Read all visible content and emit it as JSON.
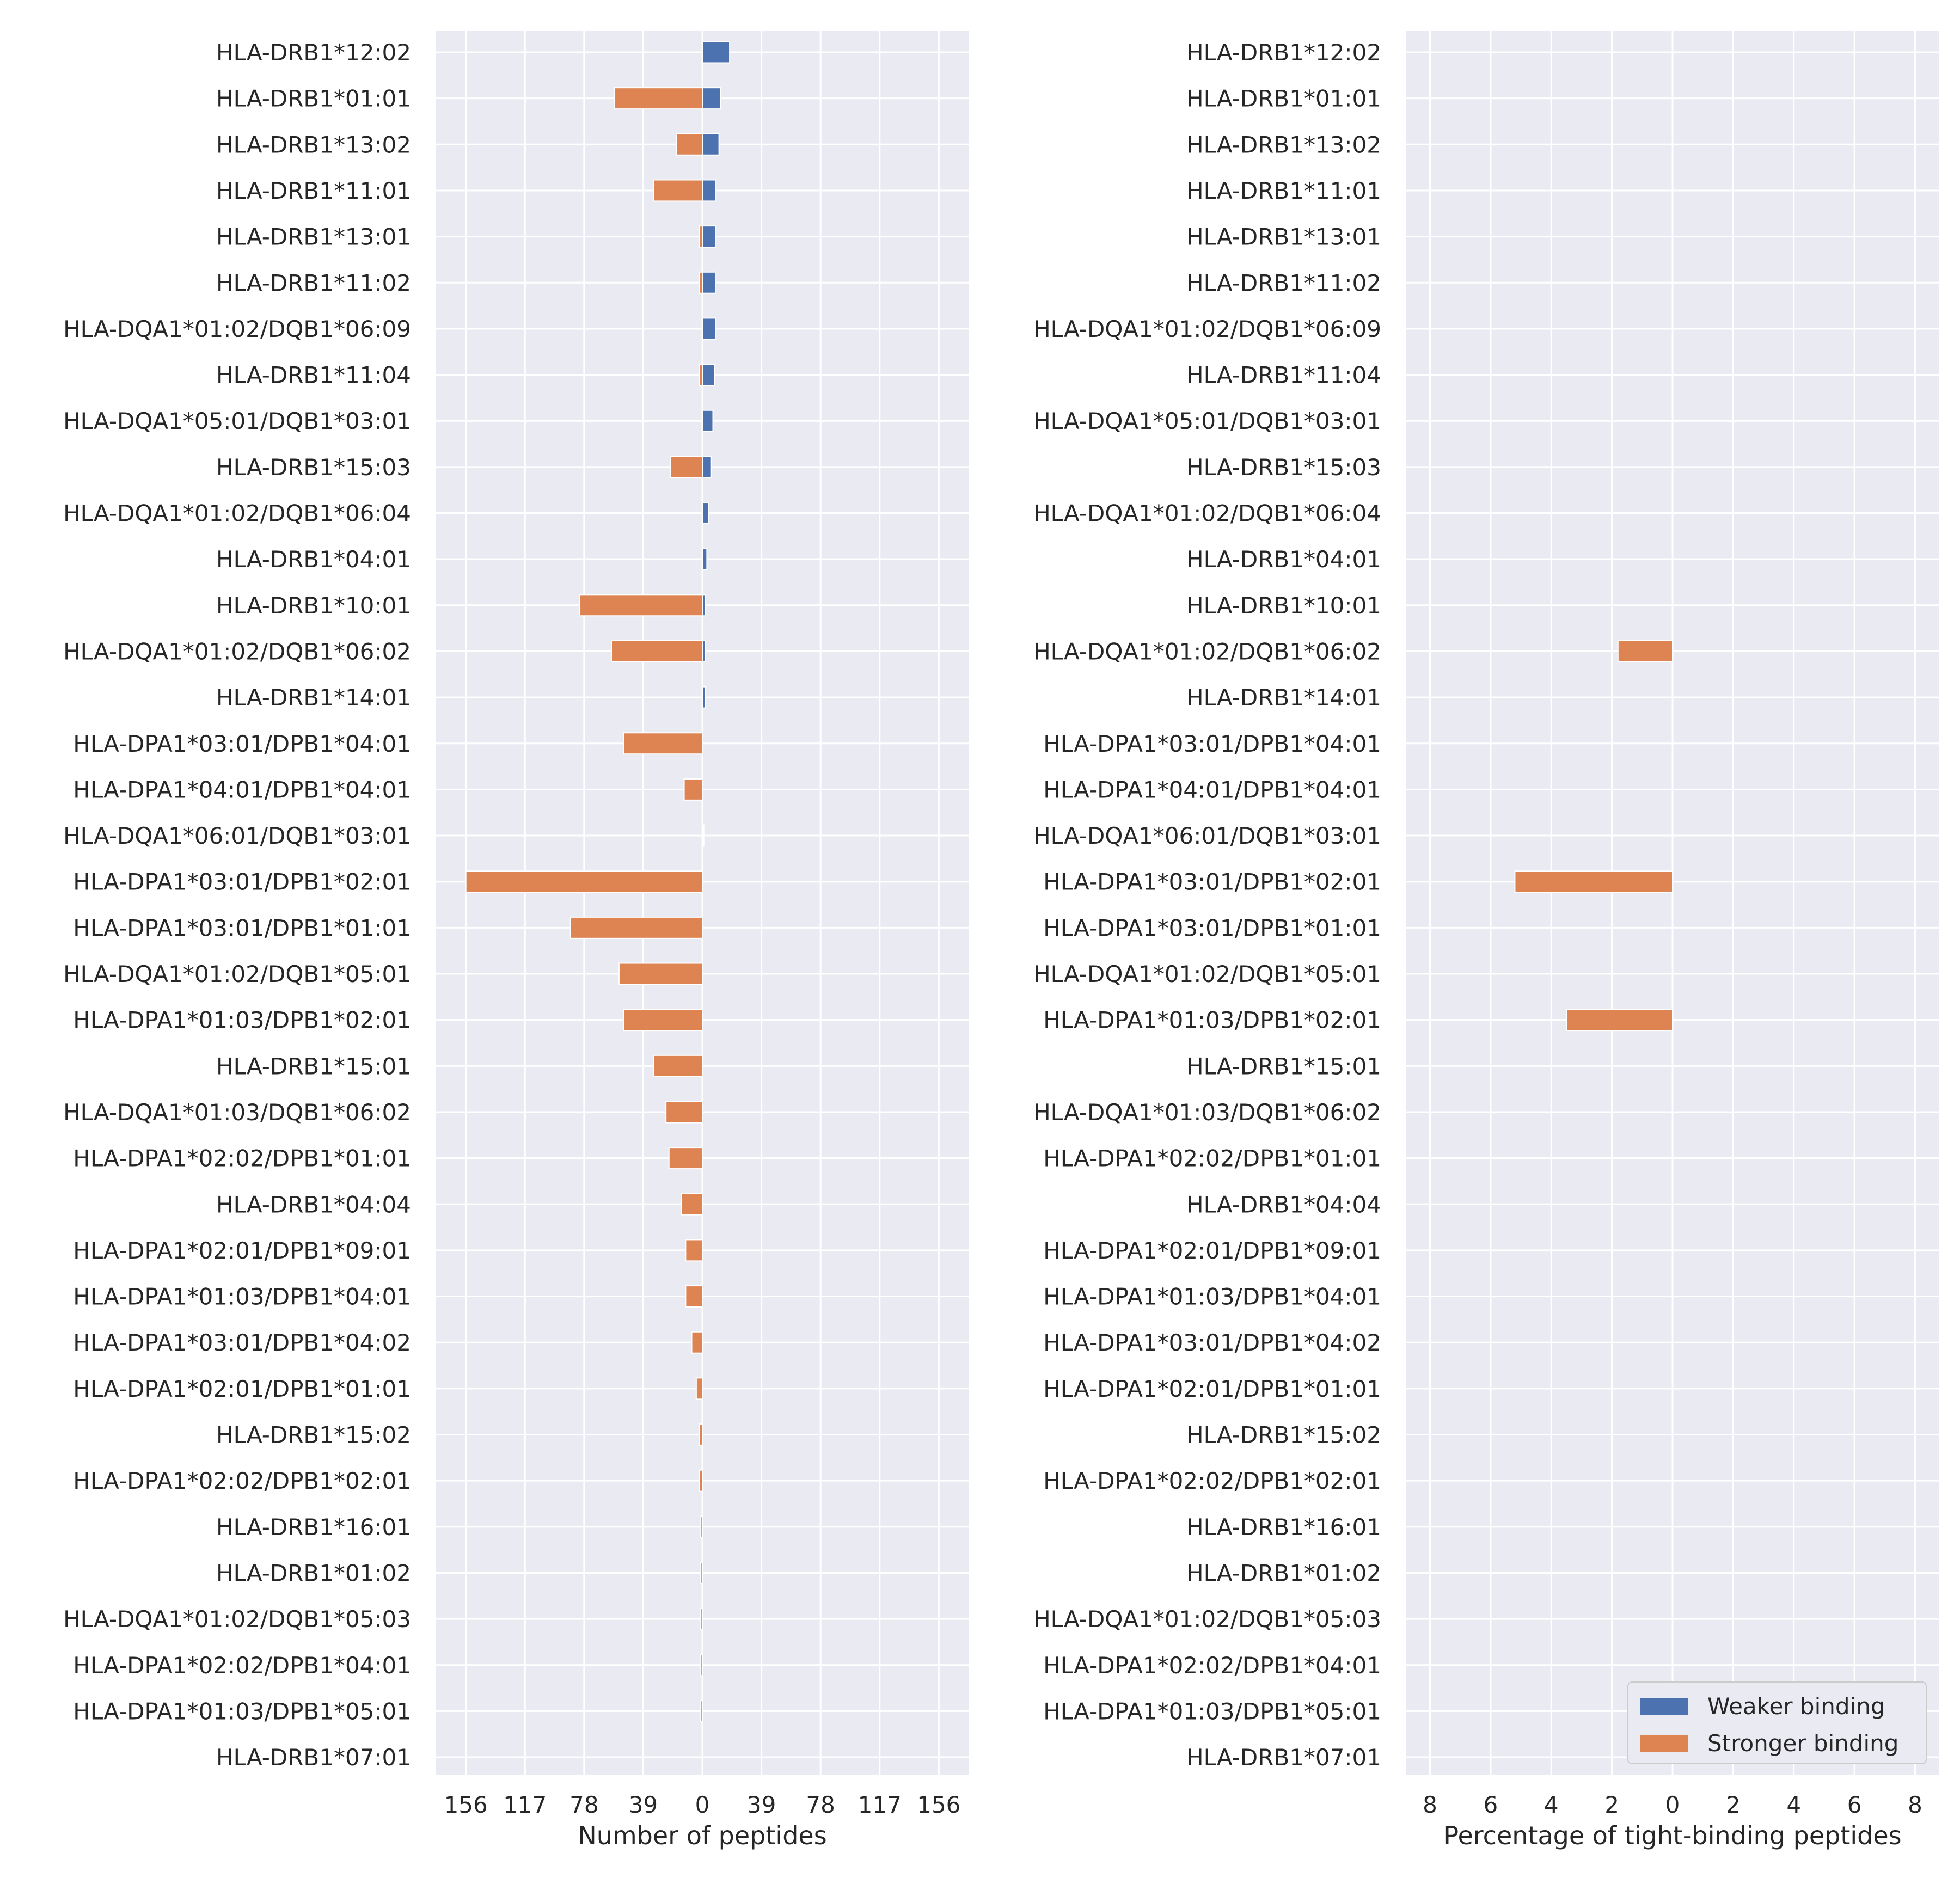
{
  "colors": {
    "weaker": "#4c72b0",
    "stronger": "#dd8452",
    "panel_bg": "#eaeaf2",
    "grid": "#ffffff",
    "text": "#262626"
  },
  "legend": {
    "weaker_label": "Weaker binding",
    "stronger_label": "Stronger binding",
    "placement": "lower-right"
  },
  "chart_data": [
    {
      "type": "bar",
      "orientation": "horizontal",
      "xlabel": "Number of peptides",
      "xlim": [
        -176,
        176
      ],
      "xticks": [
        -156,
        -117,
        -78,
        -39,
        0,
        39,
        78,
        117,
        156
      ],
      "xtick_labels": [
        "156",
        "117",
        "78",
        "39",
        "0",
        "39",
        "78",
        "117",
        "156"
      ],
      "grid": true,
      "categories": [
        "HLA-DRB1*12:02",
        "HLA-DRB1*01:01",
        "HLA-DRB1*13:02",
        "HLA-DRB1*11:01",
        "HLA-DRB1*13:01",
        "HLA-DRB1*11:02",
        "HLA-DQA1*01:02/DQB1*06:09",
        "HLA-DRB1*11:04",
        "HLA-DQA1*05:01/DQB1*03:01",
        "HLA-DRB1*15:03",
        "HLA-DQA1*01:02/DQB1*06:04",
        "HLA-DRB1*04:01",
        "HLA-DRB1*10:01",
        "HLA-DQA1*01:02/DQB1*06:02",
        "HLA-DRB1*14:01",
        "HLA-DPA1*03:01/DPB1*04:01",
        "HLA-DPA1*04:01/DPB1*04:01",
        "HLA-DQA1*06:01/DQB1*03:01",
        "HLA-DPA1*03:01/DPB1*02:01",
        "HLA-DPA1*03:01/DPB1*01:01",
        "HLA-DQA1*01:02/DQB1*05:01",
        "HLA-DPA1*01:03/DPB1*02:01",
        "HLA-DRB1*15:01",
        "HLA-DQA1*01:03/DQB1*06:02",
        "HLA-DPA1*02:02/DPB1*01:01",
        "HLA-DRB1*04:04",
        "HLA-DPA1*02:01/DPB1*09:01",
        "HLA-DPA1*01:03/DPB1*04:01",
        "HLA-DPA1*03:01/DPB1*04:02",
        "HLA-DPA1*02:01/DPB1*01:01",
        "HLA-DRB1*15:02",
        "HLA-DPA1*02:02/DPB1*02:01",
        "HLA-DRB1*16:01",
        "HLA-DRB1*01:02",
        "HLA-DQA1*01:02/DQB1*05:03",
        "HLA-DPA1*02:02/DPB1*04:01",
        "HLA-DPA1*01:03/DPB1*05:01",
        "HLA-DRB1*07:01"
      ],
      "series": [
        {
          "name": "Weaker binding",
          "direction": "right",
          "values": [
            18,
            12,
            11,
            9,
            9,
            9,
            9,
            8,
            7,
            6,
            4,
            3,
            2,
            2,
            2,
            0,
            0,
            1,
            0,
            0,
            0,
            0,
            0,
            0,
            0,
            0,
            0,
            0,
            0,
            0,
            0,
            0,
            0,
            0,
            0,
            0,
            0,
            0
          ]
        },
        {
          "name": "Stronger binding",
          "direction": "left",
          "values": [
            0,
            58,
            17,
            32,
            2,
            2,
            0,
            2,
            0,
            21,
            0,
            0,
            81,
            60,
            0,
            52,
            12,
            0,
            156,
            87,
            55,
            52,
            32,
            24,
            22,
            14,
            11,
            11,
            7,
            4,
            2,
            2,
            1,
            1,
            1,
            1,
            1,
            0
          ]
        }
      ]
    },
    {
      "type": "bar",
      "orientation": "horizontal",
      "xlabel": "Percentage of tight-binding peptides",
      "xlim": [
        -8.8,
        8.8
      ],
      "xticks": [
        -8,
        -6,
        -4,
        -2,
        0,
        2,
        4,
        6,
        8
      ],
      "xtick_labels": [
        "8",
        "6",
        "4",
        "2",
        "0",
        "2",
        "4",
        "6",
        "8"
      ],
      "grid": true,
      "categories": [
        "HLA-DRB1*12:02",
        "HLA-DRB1*01:01",
        "HLA-DRB1*13:02",
        "HLA-DRB1*11:01",
        "HLA-DRB1*13:01",
        "HLA-DRB1*11:02",
        "HLA-DQA1*01:02/DQB1*06:09",
        "HLA-DRB1*11:04",
        "HLA-DQA1*05:01/DQB1*03:01",
        "HLA-DRB1*15:03",
        "HLA-DQA1*01:02/DQB1*06:04",
        "HLA-DRB1*04:01",
        "HLA-DRB1*10:01",
        "HLA-DQA1*01:02/DQB1*06:02",
        "HLA-DRB1*14:01",
        "HLA-DPA1*03:01/DPB1*04:01",
        "HLA-DPA1*04:01/DPB1*04:01",
        "HLA-DQA1*06:01/DQB1*03:01",
        "HLA-DPA1*03:01/DPB1*02:01",
        "HLA-DPA1*03:01/DPB1*01:01",
        "HLA-DQA1*01:02/DQB1*05:01",
        "HLA-DPA1*01:03/DPB1*02:01",
        "HLA-DRB1*15:01",
        "HLA-DQA1*01:03/DQB1*06:02",
        "HLA-DPA1*02:02/DPB1*01:01",
        "HLA-DRB1*04:04",
        "HLA-DPA1*02:01/DPB1*09:01",
        "HLA-DPA1*01:03/DPB1*04:01",
        "HLA-DPA1*03:01/DPB1*04:02",
        "HLA-DPA1*02:01/DPB1*01:01",
        "HLA-DRB1*15:02",
        "HLA-DPA1*02:02/DPB1*02:01",
        "HLA-DRB1*16:01",
        "HLA-DRB1*01:02",
        "HLA-DQA1*01:02/DQB1*05:03",
        "HLA-DPA1*02:02/DPB1*04:01",
        "HLA-DPA1*01:03/DPB1*05:01",
        "HLA-DRB1*07:01"
      ],
      "series": [
        {
          "name": "Weaker binding",
          "direction": "right",
          "values": [
            0,
            0,
            0,
            0,
            0,
            0,
            0,
            0,
            0,
            0,
            0,
            0,
            0,
            0,
            0,
            0,
            0,
            0,
            0,
            0,
            0,
            0,
            0,
            0,
            0,
            0,
            0,
            0,
            0,
            0,
            0,
            0,
            0,
            0,
            0,
            0,
            0,
            0
          ]
        },
        {
          "name": "Stronger binding",
          "direction": "left",
          "values": [
            0,
            0,
            0,
            0,
            0,
            0,
            0,
            0,
            0,
            0,
            0,
            0,
            0,
            1.8,
            0,
            0,
            0,
            0,
            5.2,
            0,
            0,
            3.5,
            0,
            0,
            0,
            0,
            0,
            0,
            0,
            0,
            0,
            0,
            0,
            0,
            0,
            0,
            0,
            0
          ]
        }
      ]
    }
  ]
}
